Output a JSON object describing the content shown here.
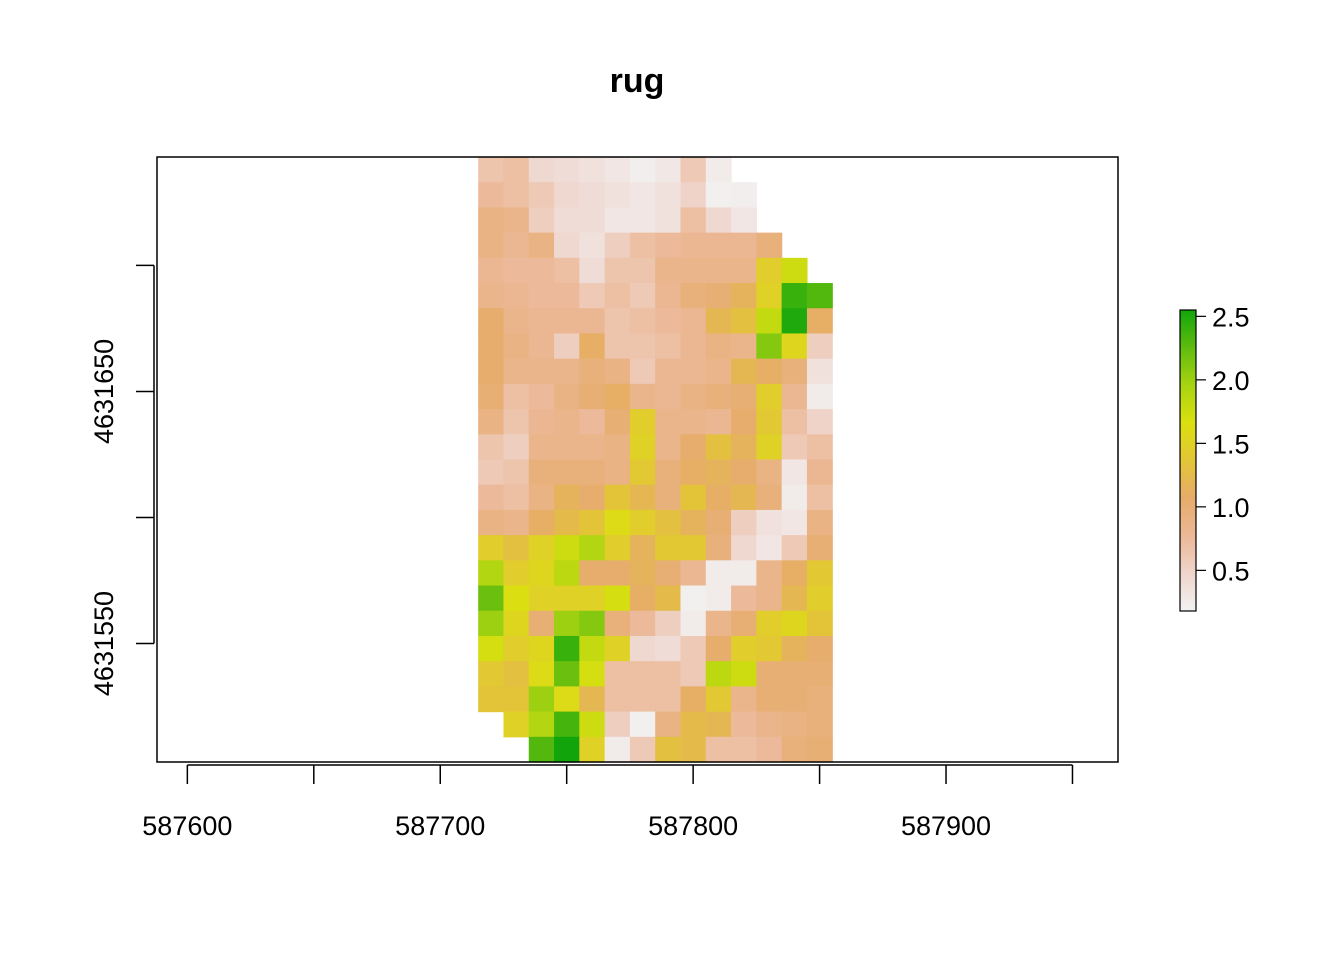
{
  "chart_data": {
    "type": "heatmap",
    "title": "rug",
    "xlabel": "",
    "ylabel": "",
    "xlim": [
      587588,
      587968
    ],
    "ylim": [
      4631503,
      4631743
    ],
    "x_ticks": [
      587600,
      587650,
      587700,
      587750,
      587800,
      587850,
      587900,
      587950
    ],
    "x_tick_labels": [
      "587600",
      "587700",
      "587800",
      "587900"
    ],
    "x_labeled_ticks": [
      587600,
      587700,
      587800,
      587900
    ],
    "y_ticks": [
      4631700,
      4631650,
      4631600,
      4631550
    ],
    "y_tick_labels": [
      "4631650",
      "4631550"
    ],
    "y_labeled_ticks": [
      4631650,
      4631550
    ],
    "grid": false,
    "legend": {
      "position": "right",
      "colors": [
        "#f2f2f2",
        "#efd5cc",
        "#ecb896",
        "#e6ac6a",
        "#e3c536",
        "#dbe010",
        "#a8d311",
        "#5ebc0e",
        "#12a50b"
      ],
      "min": 0.18,
      "max": 2.55,
      "ticks": [
        0.5,
        1.0,
        1.5,
        2.0,
        2.5
      ],
      "tick_labels": [
        "0.5",
        "1.0",
        "1.5",
        "2.0",
        "2.5"
      ]
    },
    "raster": {
      "x_start": 587715,
      "cell_width": 10,
      "y_top": 4631743,
      "cell_height": 10,
      "missing": -1,
      "values": [
        [
          0.65,
          0.7,
          0.45,
          0.4,
          0.35,
          0.3,
          0.22,
          0.28,
          0.6,
          0.25,
          -1,
          -1,
          -1,
          -1
        ],
        [
          0.75,
          0.7,
          0.6,
          0.45,
          0.4,
          0.35,
          0.3,
          0.35,
          0.5,
          0.2,
          0.22,
          -1,
          -1,
          -1
        ],
        [
          0.9,
          0.85,
          0.55,
          0.4,
          0.4,
          0.3,
          0.3,
          0.35,
          0.7,
          0.45,
          0.3,
          -1,
          -1,
          -1
        ],
        [
          0.9,
          0.8,
          0.9,
          0.45,
          0.35,
          0.55,
          0.7,
          0.75,
          0.8,
          0.8,
          0.8,
          0.95,
          -1,
          -1
        ],
        [
          0.8,
          0.75,
          0.75,
          0.7,
          0.4,
          0.65,
          0.65,
          0.85,
          0.85,
          0.85,
          0.85,
          1.45,
          1.75,
          -1
        ],
        [
          0.85,
          0.8,
          0.75,
          0.75,
          0.6,
          0.7,
          0.6,
          0.8,
          0.95,
          1.0,
          1.15,
          1.5,
          2.4,
          2.3
        ],
        [
          1.05,
          0.85,
          0.8,
          0.8,
          0.8,
          0.65,
          0.7,
          0.75,
          0.8,
          1.2,
          1.3,
          1.8,
          2.5,
          1.1
        ],
        [
          1.05,
          0.9,
          0.8,
          0.55,
          1.1,
          0.65,
          0.65,
          0.7,
          0.8,
          0.9,
          0.85,
          2.1,
          1.55,
          0.55
        ],
        [
          1.05,
          0.85,
          0.85,
          0.85,
          0.95,
          0.9,
          0.6,
          0.8,
          0.8,
          0.85,
          1.2,
          1.1,
          0.95,
          0.35
        ],
        [
          1.0,
          0.7,
          0.75,
          0.9,
          1.0,
          1.1,
          0.85,
          0.8,
          0.9,
          0.95,
          1.0,
          1.45,
          0.8,
          0.25
        ],
        [
          0.9,
          0.65,
          0.8,
          0.85,
          0.75,
          1.0,
          1.45,
          0.85,
          0.85,
          0.8,
          1.05,
          1.4,
          0.7,
          0.5
        ],
        [
          0.65,
          0.55,
          0.85,
          0.85,
          0.85,
          0.9,
          1.5,
          0.85,
          1.05,
          1.3,
          1.15,
          1.5,
          0.6,
          0.7
        ],
        [
          0.6,
          0.65,
          0.95,
          0.95,
          0.95,
          0.9,
          1.4,
          0.95,
          1.1,
          1.15,
          1.05,
          0.9,
          0.3,
          0.8
        ],
        [
          0.75,
          0.7,
          0.9,
          1.15,
          1.05,
          1.35,
          1.2,
          0.95,
          1.35,
          1.1,
          1.2,
          0.95,
          0.25,
          0.7
        ],
        [
          0.9,
          0.85,
          1.1,
          1.25,
          1.35,
          1.6,
          1.45,
          1.3,
          1.15,
          1.0,
          0.55,
          0.35,
          0.3,
          0.9
        ],
        [
          1.45,
          1.3,
          1.5,
          1.75,
          1.9,
          1.45,
          1.15,
          1.4,
          1.4,
          0.95,
          0.45,
          0.3,
          0.6,
          1.0
        ],
        [
          1.9,
          1.45,
          1.55,
          1.85,
          1.05,
          1.05,
          1.15,
          1.0,
          0.8,
          0.25,
          0.25,
          0.85,
          1.1,
          1.4
        ],
        [
          2.2,
          1.65,
          1.5,
          1.5,
          1.5,
          1.7,
          1.1,
          1.25,
          0.2,
          0.25,
          0.75,
          0.85,
          1.2,
          1.45
        ],
        [
          2.0,
          1.55,
          1.0,
          2.0,
          2.1,
          0.95,
          0.75,
          0.55,
          0.25,
          0.85,
          1.0,
          1.45,
          1.55,
          1.35
        ],
        [
          1.7,
          1.45,
          1.55,
          2.4,
          1.8,
          1.5,
          0.45,
          0.4,
          0.6,
          1.05,
          1.45,
          1.4,
          1.15,
          1.05
        ],
        [
          1.4,
          1.3,
          1.6,
          2.2,
          1.7,
          0.7,
          0.7,
          0.7,
          0.6,
          1.85,
          1.75,
          1.0,
          1.0,
          1.0
        ],
        [
          1.35,
          1.35,
          2.0,
          1.6,
          1.2,
          0.7,
          0.7,
          0.7,
          1.1,
          1.4,
          0.85,
          1.0,
          1.0,
          0.95
        ],
        [
          -1,
          1.5,
          1.9,
          2.35,
          1.75,
          0.55,
          0.2,
          0.9,
          1.25,
          1.2,
          0.75,
          0.85,
          0.9,
          0.95
        ],
        [
          -1,
          -1,
          2.3,
          2.55,
          1.5,
          0.25,
          0.6,
          1.3,
          1.25,
          0.7,
          0.7,
          0.75,
          0.95,
          1.0
        ]
      ]
    }
  }
}
